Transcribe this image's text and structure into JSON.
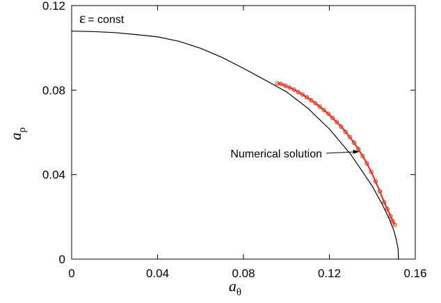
{
  "chart_data": {
    "type": "line",
    "title": "",
    "xlabel": {
      "main": "a",
      "sub": "θ"
    },
    "ylabel": {
      "main": "a",
      "sub": "ρ"
    },
    "xlim": [
      0,
      0.16
    ],
    "ylim": [
      0,
      0.12
    ],
    "x_ticks": [
      "0",
      "0.04",
      "0.08",
      "0.12",
      "0.16"
    ],
    "x_tick_values": [
      0,
      0.04,
      0.08,
      0.12,
      0.16
    ],
    "y_ticks": [
      "0",
      "0.04",
      "0.08",
      "0.12"
    ],
    "y_tick_values": [
      0,
      0.04,
      0.08,
      0.12
    ],
    "legend_text": {
      "symbol": "ε",
      "text": "= const"
    },
    "annotation": {
      "text": "Numerical solution",
      "arrow_to": [
        0.134,
        0.0508
      ]
    },
    "series": [
      {
        "style": "line",
        "color": "#000000",
        "x": [
          0.0,
          0.01,
          0.02,
          0.03,
          0.04,
          0.05,
          0.06,
          0.07,
          0.08,
          0.09,
          0.1,
          0.11,
          0.12,
          0.13,
          0.14,
          0.145,
          0.148,
          0.15,
          0.151,
          0.152,
          0.1522
        ],
        "y": [
          0.1079,
          0.1077,
          0.1072,
          0.1063,
          0.1052,
          0.1031,
          0.0998,
          0.0955,
          0.0903,
          0.0848,
          0.0792,
          0.0714,
          0.0616,
          0.0495,
          0.0345,
          0.0252,
          0.0187,
          0.0136,
          0.01,
          0.005,
          0.0
        ]
      },
      {
        "style": "markers",
        "color": "#e8321e",
        "x": [
          0.0958,
          0.0975,
          0.0995,
          0.1015,
          0.1035,
          0.1055,
          0.1075,
          0.1095,
          0.1115,
          0.1135,
          0.1155,
          0.1175,
          0.1195,
          0.1215,
          0.1235,
          0.1255,
          0.1275,
          0.1295,
          0.1315,
          0.1335,
          0.1355,
          0.1375,
          0.1395,
          0.1415,
          0.1435,
          0.1455,
          0.147,
          0.1485,
          0.1495,
          0.1505
        ],
        "y": [
          0.0832,
          0.0829,
          0.0821,
          0.0812,
          0.0802,
          0.0791,
          0.0779,
          0.0766,
          0.0752,
          0.0738,
          0.0722,
          0.0705,
          0.0688,
          0.0668,
          0.0648,
          0.0627,
          0.0603,
          0.0578,
          0.0551,
          0.0521,
          0.0488,
          0.0453,
          0.0413,
          0.0368,
          0.0321,
          0.027,
          0.0237,
          0.0203,
          0.018,
          0.0163
        ]
      }
    ]
  }
}
